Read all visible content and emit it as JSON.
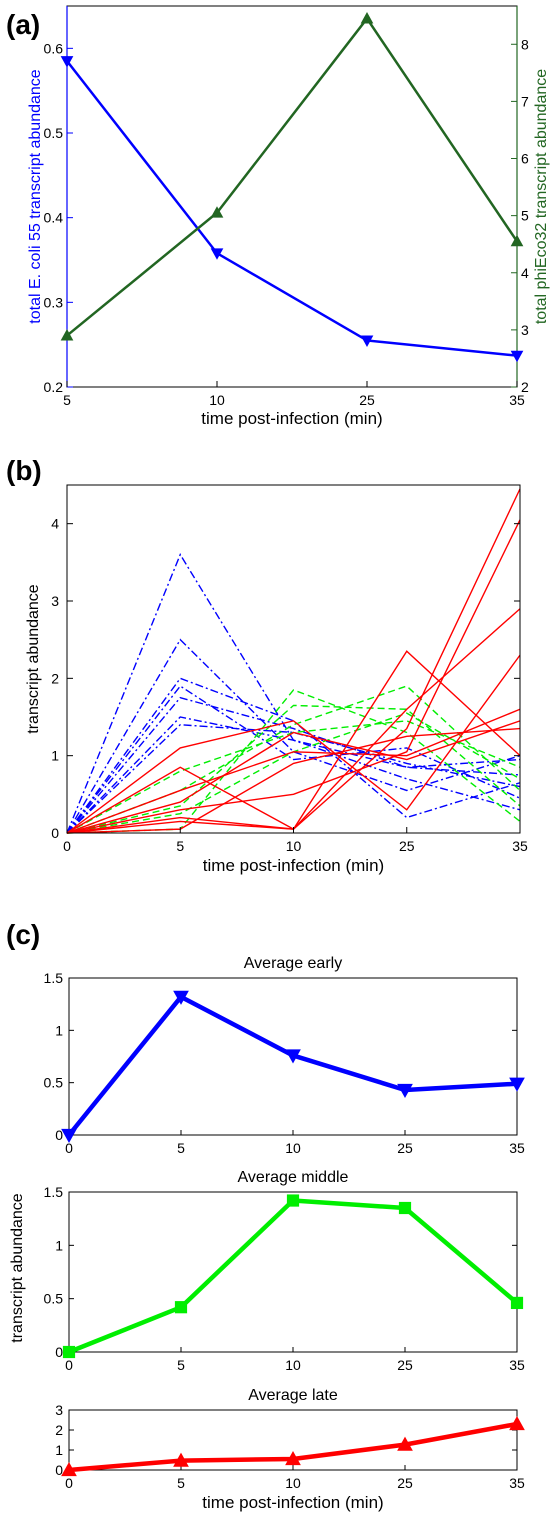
{
  "panels": {
    "a": {
      "label": "(a)"
    },
    "b": {
      "label": "(b)"
    },
    "c": {
      "label": "(c)"
    }
  },
  "colors": {
    "early": "#0000ff",
    "middle": "#00ee00",
    "late": "#ff0000",
    "phi": "#226622"
  },
  "chart_data": [
    {
      "id": "a",
      "type": "line",
      "x": [
        5,
        10,
        25,
        35
      ],
      "categories": [
        "5",
        "10",
        "25",
        "35"
      ],
      "xlabel": "time post-infection (min)",
      "ylabel_left": "total E. coli 55 transcript abundance",
      "ylabel_right": "total phiEco32 transcript abundance",
      "ylim_left": [
        0.2,
        0.65
      ],
      "ylim_right": [
        2,
        8.67
      ],
      "yticks_left": [
        0.2,
        0.3,
        0.4,
        0.5,
        0.6
      ],
      "yticks_right": [
        2,
        3,
        4,
        5,
        6,
        7,
        8
      ],
      "series": [
        {
          "axis": "left",
          "color": "#0000ff",
          "marker": "triangle-down",
          "values": [
            0.585,
            0.358,
            0.255,
            0.237
          ]
        },
        {
          "axis": "right",
          "color": "#226622",
          "marker": "triangle-up",
          "values": [
            2.9,
            5.05,
            8.45,
            4.55
          ]
        }
      ],
      "grid": false
    },
    {
      "id": "b",
      "type": "line",
      "x": [
        0,
        5,
        10,
        25,
        35
      ],
      "categories": [
        "0",
        "5",
        "10",
        "25",
        "35"
      ],
      "xlabel": "time post-infection (min)",
      "ylabel": "transcript abundance",
      "ylim": [
        0,
        4.5
      ],
      "yticks": [
        0,
        1,
        2,
        3,
        4
      ],
      "series": [
        {
          "group": "early",
          "style": "dashdot",
          "values": [
            0,
            3.6,
            1.2,
            0.85,
            0.95
          ]
        },
        {
          "group": "early",
          "style": "dashdot",
          "values": [
            0,
            2.5,
            1.05,
            0.55,
            1.0
          ]
        },
        {
          "group": "early",
          "style": "dashdot",
          "values": [
            0,
            2.0,
            1.45,
            0.2,
            0.65
          ]
        },
        {
          "group": "early",
          "style": "dashdot",
          "values": [
            0,
            1.9,
            0.95,
            1.1,
            0.45
          ]
        },
        {
          "group": "early",
          "style": "dashdot",
          "values": [
            0,
            1.75,
            1.35,
            0.85,
            0.75
          ]
        },
        {
          "group": "early",
          "style": "dashdot",
          "values": [
            0,
            1.5,
            1.2,
            0.7,
            0.3
          ]
        },
        {
          "group": "early",
          "style": "dashdot",
          "values": [
            0,
            1.4,
            1.3,
            0.9,
            0.6
          ]
        },
        {
          "group": "middle",
          "style": "dashed",
          "values": [
            0,
            0.05,
            1.85,
            1.3,
            0.15
          ]
        },
        {
          "group": "middle",
          "style": "dashed",
          "values": [
            0,
            0.35,
            1.65,
            1.6,
            0.35
          ]
        },
        {
          "group": "middle",
          "style": "dashed",
          "values": [
            0,
            0.55,
            1.4,
            1.9,
            0.55
          ]
        },
        {
          "group": "middle",
          "style": "dashed",
          "values": [
            0,
            0.8,
            1.3,
            1.45,
            0.85
          ]
        },
        {
          "group": "middle",
          "style": "dashed",
          "values": [
            0,
            0.25,
            1.05,
            1.55,
            0.7
          ]
        },
        {
          "group": "late",
          "style": "solid",
          "values": [
            0,
            0.15,
            0.05,
            2.35,
            1.0
          ]
        },
        {
          "group": "late",
          "style": "solid",
          "values": [
            0,
            0.2,
            0.05,
            1.35,
            4.45
          ]
        },
        {
          "group": "late",
          "style": "solid",
          "values": [
            0,
            0.3,
            0.5,
            1.05,
            4.05
          ]
        },
        {
          "group": "late",
          "style": "solid",
          "values": [
            0,
            0.85,
            0.05,
            1.6,
            2.9
          ]
        },
        {
          "group": "late",
          "style": "solid",
          "values": [
            0,
            1.1,
            1.45,
            0.3,
            2.3
          ]
        },
        {
          "group": "late",
          "style": "solid",
          "values": [
            0,
            0.55,
            1.05,
            1.0,
            1.6
          ]
        },
        {
          "group": "late",
          "style": "solid",
          "values": [
            0,
            0.4,
            1.3,
            0.95,
            1.45
          ]
        },
        {
          "group": "late",
          "style": "solid",
          "values": [
            0,
            0.05,
            0.9,
            1.25,
            1.35
          ]
        }
      ],
      "grid": false
    },
    {
      "id": "c1",
      "type": "line",
      "title": "Average early",
      "x": [
        0,
        5,
        10,
        25,
        35
      ],
      "categories": [
        "0",
        "5",
        "10",
        "25",
        "35"
      ],
      "ylim": [
        0,
        1.5
      ],
      "yticks": [
        "0",
        "0.5",
        "1",
        "1.5"
      ],
      "series": [
        {
          "color": "#0000ff",
          "marker": "triangle-down",
          "values": [
            0.0,
            1.32,
            0.76,
            0.43,
            0.49
          ]
        }
      ],
      "grid": false
    },
    {
      "id": "c2",
      "type": "line",
      "title": "Average middle",
      "ylabel": "transcript abundance",
      "x": [
        0,
        5,
        10,
        25,
        35
      ],
      "categories": [
        "0",
        "5",
        "10",
        "25",
        "35"
      ],
      "ylim": [
        0,
        1.5
      ],
      "yticks": [
        "0",
        "0.5",
        "1",
        "1.5"
      ],
      "series": [
        {
          "color": "#00ee00",
          "marker": "square",
          "values": [
            0.0,
            0.42,
            1.42,
            1.35,
            0.46
          ]
        }
      ],
      "grid": false
    },
    {
      "id": "c3",
      "type": "line",
      "title": "Average late",
      "xlabel": "time post-infection (min)",
      "x": [
        0,
        5,
        10,
        25,
        35
      ],
      "categories": [
        "0",
        "5",
        "10",
        "25",
        "35"
      ],
      "ylim": [
        0,
        3
      ],
      "yticks": [
        "0",
        "1",
        "2",
        "3"
      ],
      "series": [
        {
          "color": "#ff0000",
          "marker": "triangle-up",
          "values": [
            0.0,
            0.47,
            0.55,
            1.27,
            2.3
          ]
        }
      ],
      "grid": false
    }
  ]
}
